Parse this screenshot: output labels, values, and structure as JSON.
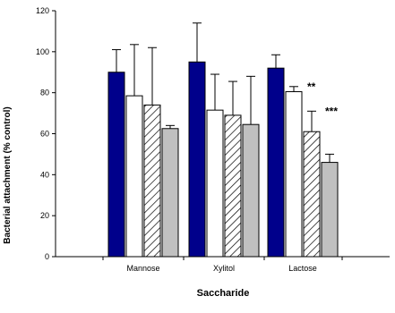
{
  "chart_data": {
    "type": "bar",
    "xlabel": "Saccharide",
    "ylabel": "Bacterial attachment (% control)",
    "ylim": [
      0,
      120
    ],
    "yticks": [
      0,
      20,
      40,
      60,
      80,
      100,
      120
    ],
    "categories": [
      "Mannose",
      "Xylitol",
      "Lactose"
    ],
    "series": [
      {
        "fill": "#00008B",
        "pattern": "solid",
        "values": [
          90,
          95,
          92
        ],
        "errors": [
          11,
          19,
          6.5
        ]
      },
      {
        "fill": "#FFFFFF",
        "pattern": "solid",
        "values": [
          78.5,
          71.5,
          80.5
        ],
        "errors": [
          25,
          17.5,
          2.5
        ]
      },
      {
        "fill": "#FFFFFF",
        "pattern": "diagonal-hatch",
        "values": [
          74,
          69,
          61
        ],
        "errors": [
          28,
          16.5,
          10
        ]
      },
      {
        "fill": "#C0C0C0",
        "pattern": "solid",
        "values": [
          62.5,
          64.5,
          46
        ],
        "errors": [
          1.5,
          23.5,
          4
        ]
      }
    ],
    "annotations": [
      {
        "text": "**",
        "category": "Lactose",
        "series_index": 1
      },
      {
        "text": "***",
        "category": "Lactose",
        "series_index": 2
      }
    ],
    "grid": false,
    "legend": "none"
  }
}
